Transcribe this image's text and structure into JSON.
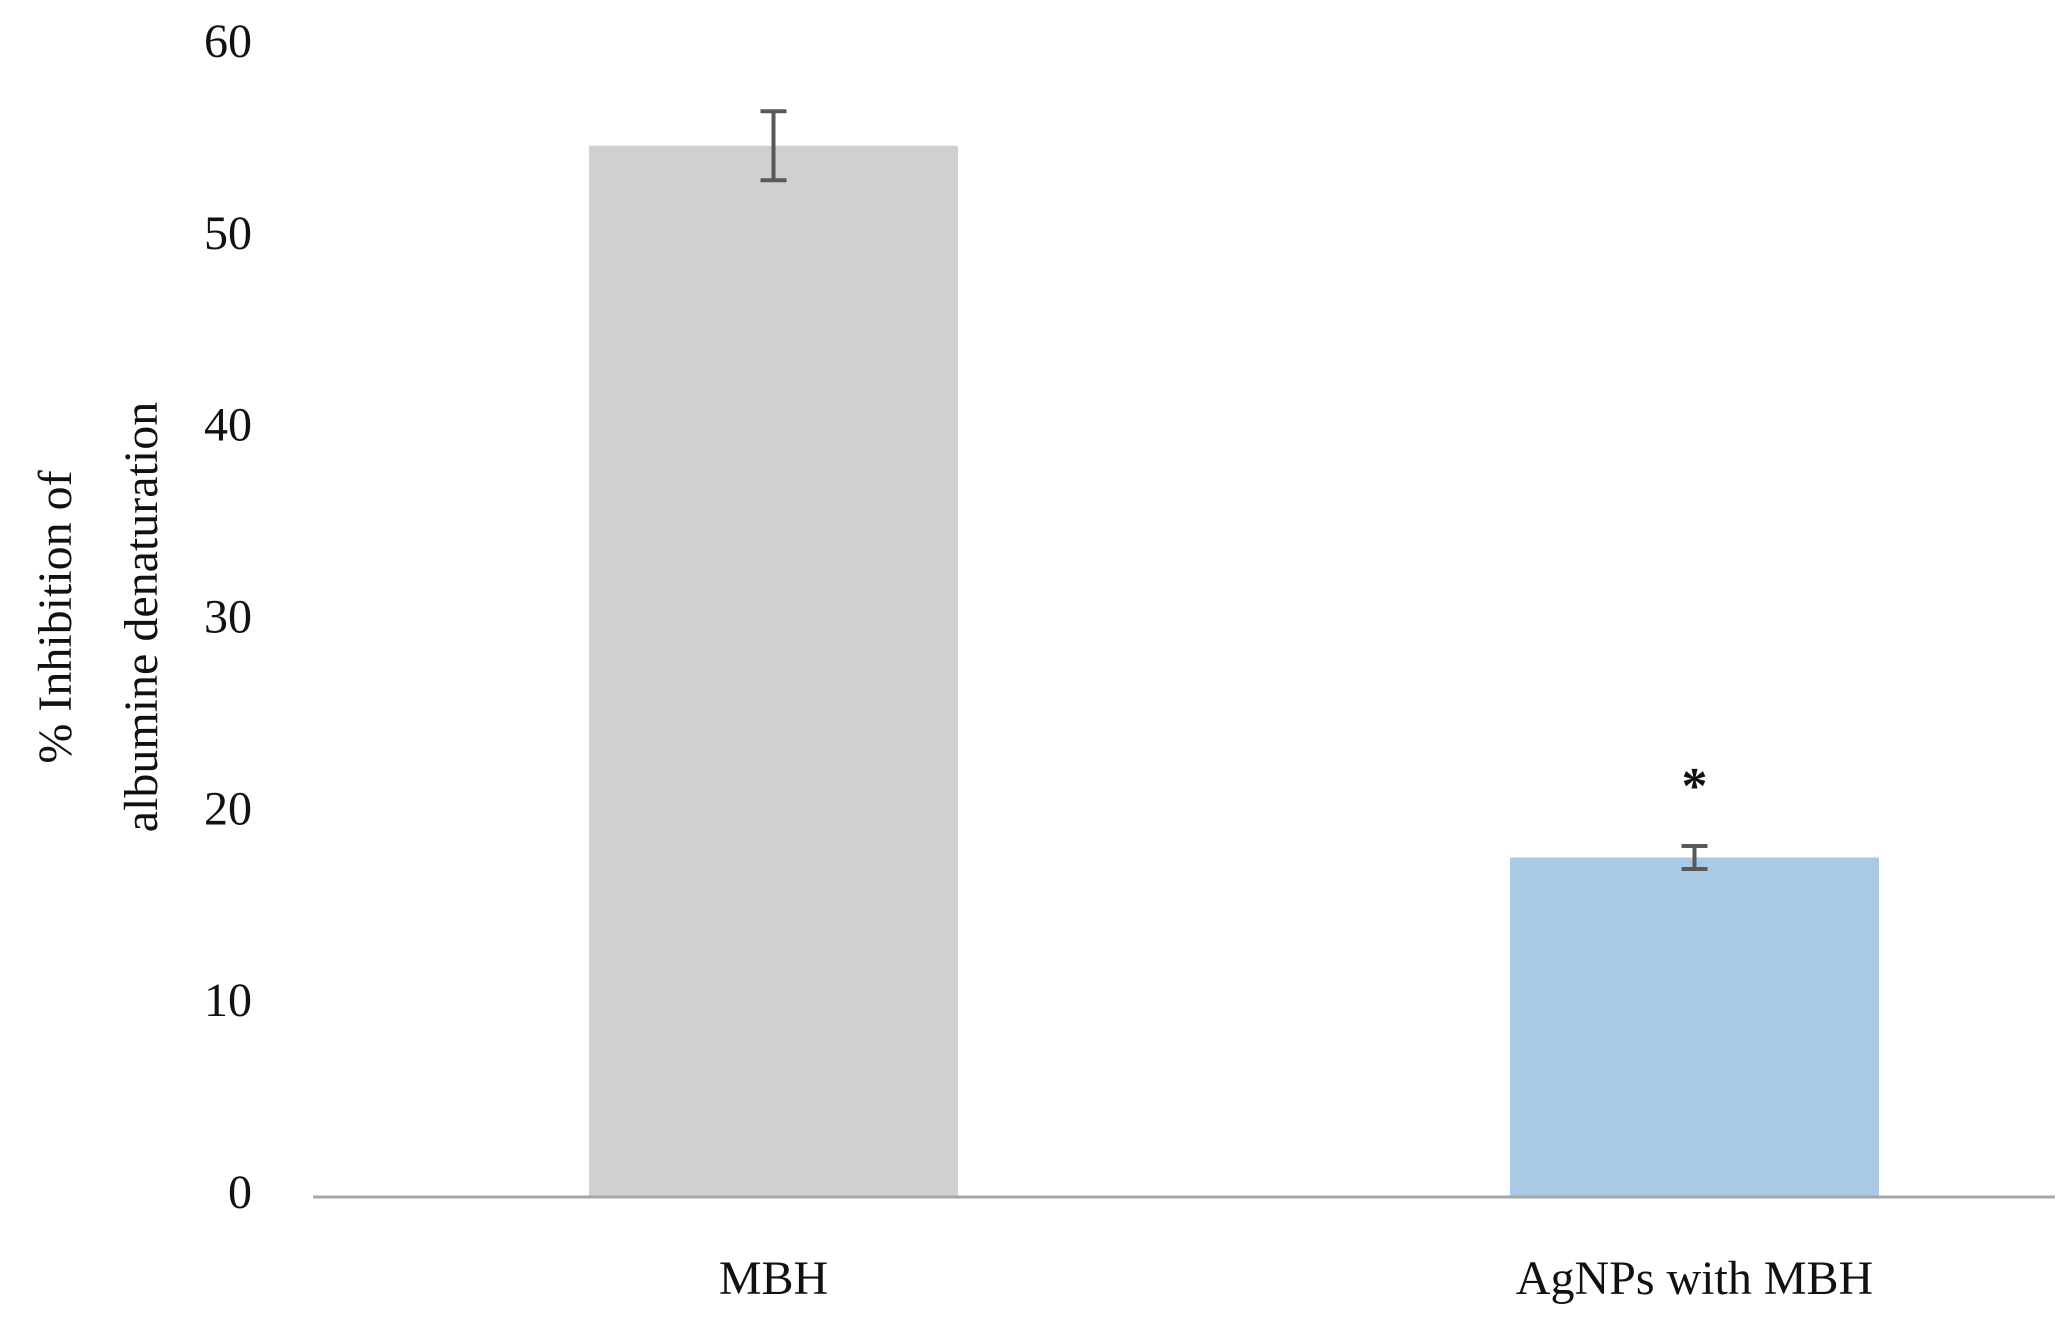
{
  "chart_data": {
    "type": "bar",
    "y_label": [
      "% Inhibition of",
      "albumine denaturation"
    ],
    "categories": [
      "MBH",
      "AgNPs with MBH"
    ],
    "values": [
      54.8,
      17.7
    ],
    "errors": [
      1.8,
      0.6
    ],
    "colors": [
      "#d0d0d0",
      "#a9c9e5"
    ],
    "error_color": "#595959",
    "annotations": [
      {
        "text": "*",
        "category": "AgNPs with MBH"
      }
    ],
    "ylim": [
      0,
      60
    ],
    "yticks": [
      0,
      10,
      20,
      30,
      40,
      50,
      60
    ],
    "grid": false
  }
}
